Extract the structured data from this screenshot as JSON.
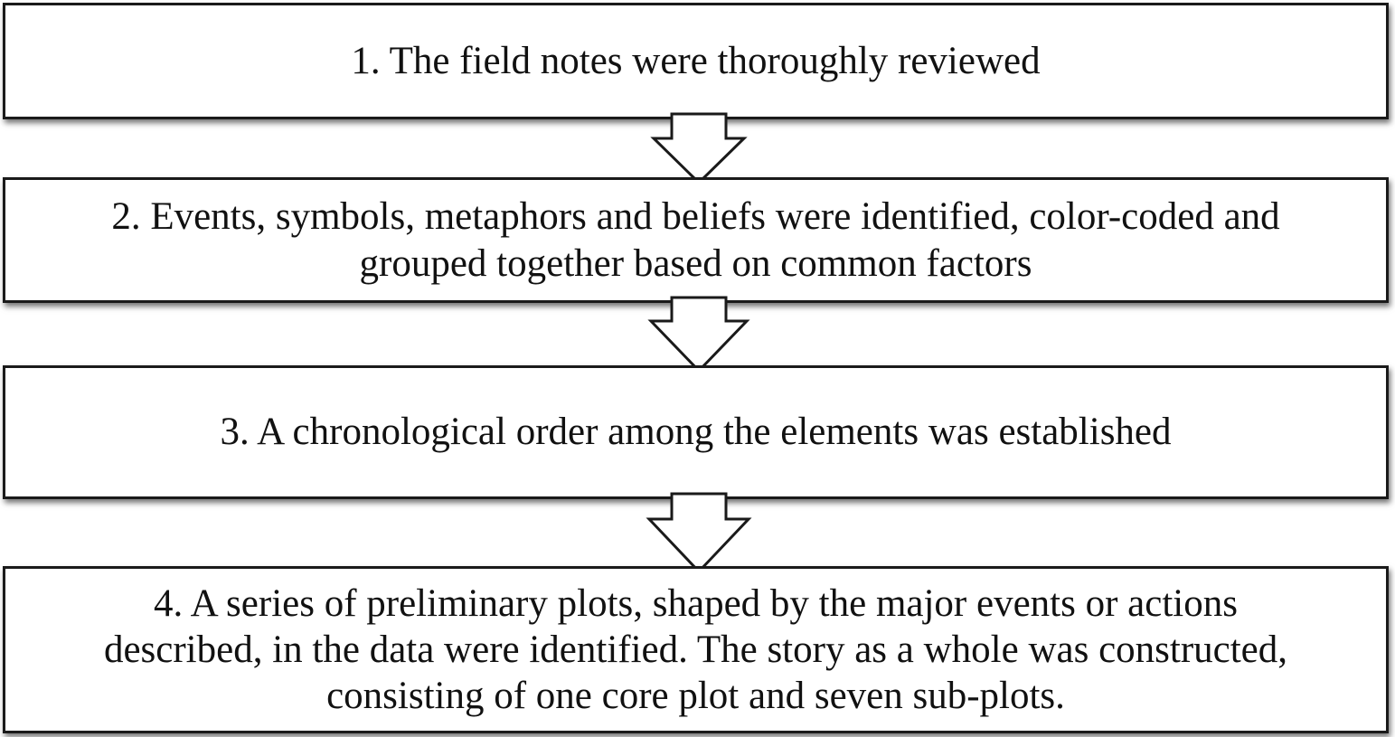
{
  "steps": [
    {
      "label": "1. The field notes were thoroughly reviewed"
    },
    {
      "label": "2. Events, symbols, metaphors and beliefs were identified, color-coded and\ngrouped together based on common factors"
    },
    {
      "label": "3. A chronological order among the elements was established"
    },
    {
      "label": "4. A series of preliminary plots, shaped by the major events or actions\ndescribed, in the data were identified. The story as a whole was constructed,\nconsisting of one core plot and seven sub-plots."
    }
  ],
  "colors": {
    "border": "#1a1a1a",
    "fill": "#ffffff",
    "shadow": "#555555"
  },
  "connectors": [
    {
      "icon": "down-arrow-icon"
    },
    {
      "icon": "down-arrow-icon"
    },
    {
      "icon": "down-arrow-icon"
    }
  ]
}
